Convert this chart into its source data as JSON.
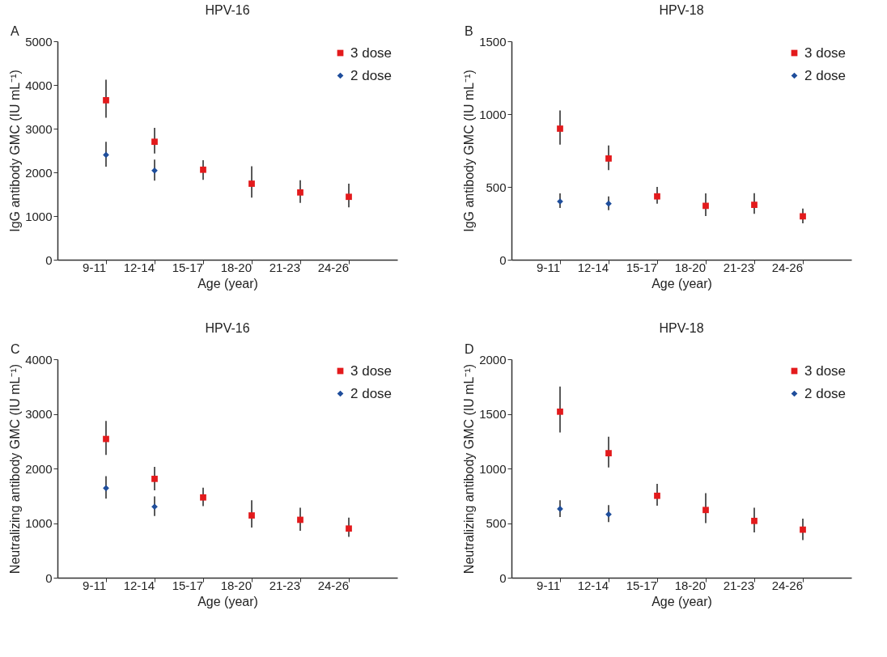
{
  "chart_data": [
    {
      "type": "scatter",
      "title": "HPV-16",
      "annotations": [
        "A"
      ],
      "xlabel": "Age (year)",
      "ylabel": "IgG antibody GMC (IU mL⁻¹)",
      "categories": [
        "9-11",
        "12-14",
        "15-17",
        "18-20",
        "21-23",
        "24-26"
      ],
      "ylim": [
        0,
        5000
      ],
      "yticks": [
        0,
        1000,
        2000,
        3000,
        4000,
        5000
      ],
      "grid": false,
      "legend": "top right",
      "series": [
        {
          "name": "3 dose",
          "color": "#e31a1c",
          "marker": "square",
          "values": [
            3650,
            2700,
            2060,
            1740,
            1540,
            1440
          ],
          "errors": [
            [
              3250,
              4120
            ],
            [
              2430,
              3020
            ],
            [
              1830,
              2280
            ],
            [
              1420,
              2140
            ],
            [
              1300,
              1820
            ],
            [
              1200,
              1740
            ]
          ]
        },
        {
          "name": "2 dose",
          "color": "#1f4e9c",
          "marker": "diamond",
          "values": [
            2400,
            2040,
            null,
            null,
            null,
            null
          ],
          "errors": [
            [
              2130,
              2700
            ],
            [
              1810,
              2290
            ],
            null,
            null,
            null,
            null
          ]
        }
      ]
    },
    {
      "type": "scatter",
      "title": "HPV-18",
      "annotations": [
        "B"
      ],
      "xlabel": "Age (year)",
      "ylabel": "IgG antibody GMC (IU mL⁻¹)",
      "categories": [
        "9-11",
        "12-14",
        "15-17",
        "18-20",
        "21-23",
        "24-26"
      ],
      "ylim": [
        0,
        1500
      ],
      "yticks": [
        0,
        500,
        1000,
        1500
      ],
      "grid": false,
      "legend": "top right",
      "series": [
        {
          "name": "3 dose",
          "color": "#e31a1c",
          "marker": "square",
          "values": [
            900,
            695,
            435,
            370,
            377,
            298
          ],
          "errors": [
            [
              790,
              1025
            ],
            [
              615,
              785
            ],
            [
              385,
              500
            ],
            [
              300,
              455
            ],
            [
              315,
              457
            ],
            [
              250,
              352
            ]
          ]
        },
        {
          "name": "2 dose",
          "color": "#1f4e9c",
          "marker": "diamond",
          "values": [
            400,
            385,
            null,
            null,
            null,
            null
          ],
          "errors": [
            [
              355,
              455
            ],
            [
              340,
              435
            ],
            null,
            null,
            null,
            null
          ]
        }
      ]
    },
    {
      "type": "scatter",
      "title": "HPV-16",
      "annotations": [
        "C"
      ],
      "xlabel": "Age (year)",
      "ylabel": "Neutralizing antibody GMC (IU mL⁻¹)",
      "categories": [
        "9-11",
        "12-14",
        "15-17",
        "18-20",
        "21-23",
        "24-26"
      ],
      "ylim": [
        0,
        4000
      ],
      "yticks": [
        0,
        1000,
        2000,
        3000,
        4000
      ],
      "grid": false,
      "legend": "top right",
      "series": [
        {
          "name": "3 dose",
          "color": "#e31a1c",
          "marker": "square",
          "values": [
            2540,
            1810,
            1470,
            1140,
            1060,
            900
          ],
          "errors": [
            [
              2250,
              2870
            ],
            [
              1600,
              2030
            ],
            [
              1310,
              1650
            ],
            [
              920,
              1420
            ],
            [
              860,
              1280
            ],
            [
              750,
              1100
            ]
          ]
        },
        {
          "name": "2 dose",
          "color": "#1f4e9c",
          "marker": "diamond",
          "values": [
            1640,
            1300,
            null,
            null,
            null,
            null
          ],
          "errors": [
            [
              1450,
              1860
            ],
            [
              1130,
              1490
            ],
            null,
            null,
            null,
            null
          ]
        }
      ]
    },
    {
      "type": "scatter",
      "title": "HPV-18",
      "annotations": [
        "D"
      ],
      "xlabel": "Age (year)",
      "ylabel": "Neutralizing antibody GMC (IU mL⁻¹)",
      "categories": [
        "9-11",
        "12-14",
        "15-17",
        "18-20",
        "21-23",
        "24-26"
      ],
      "ylim": [
        0,
        2000
      ],
      "yticks": [
        0,
        500,
        1000,
        1500,
        2000
      ],
      "grid": false,
      "legend": "top right",
      "series": [
        {
          "name": "3 dose",
          "color": "#e31a1c",
          "marker": "square",
          "values": [
            1520,
            1140,
            750,
            620,
            520,
            440
          ],
          "errors": [
            [
              1330,
              1750
            ],
            [
              1010,
              1290
            ],
            [
              660,
              860
            ],
            [
              500,
              775
            ],
            [
              415,
              640
            ],
            [
              345,
              540
            ]
          ]
        },
        {
          "name": "2 dose",
          "color": "#1f4e9c",
          "marker": "diamond",
          "values": [
            630,
            580,
            null,
            null,
            null,
            null
          ],
          "errors": [
            [
              555,
              710
            ],
            [
              510,
              665
            ],
            null,
            null,
            null,
            null
          ]
        }
      ]
    }
  ]
}
